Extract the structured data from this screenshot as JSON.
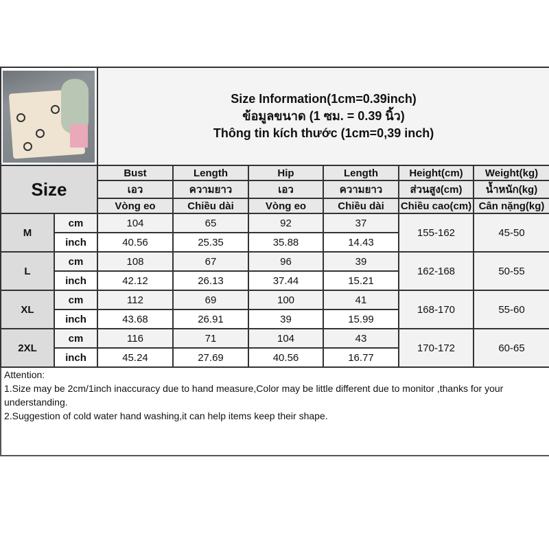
{
  "title_lines": [
    "Size Information(1cm=0.39inch)",
    "ข้อมูลขนาด (1 ซม. = 0.39 นิ้ว)",
    "Thông tin kích thước (1cm=0,39 inch)"
  ],
  "size_label": "Size",
  "headers": [
    {
      "en": "Bust",
      "th": "เอว",
      "vi": "Vòng eo"
    },
    {
      "en": "Length",
      "th": "ความยาว",
      "vi": "Chiều dài"
    },
    {
      "en": "Hip",
      "th": "เอว",
      "vi": "Vòng eo"
    },
    {
      "en": "Length",
      "th": "ความยาว",
      "vi": "Chiều dài"
    },
    {
      "en": "Height(cm)",
      "th": "ส่วนสูง(cm)",
      "vi": "Chiều cao(cm)"
    },
    {
      "en": "Weight(kg)",
      "th": "น้ำหนัก(kg)",
      "vi": "Cân nặng(kg)"
    }
  ],
  "unit_labels": {
    "cm": "cm",
    "inch": "inch"
  },
  "sizes": [
    {
      "size": "M",
      "cm": [
        "104",
        "65",
        "92",
        "37"
      ],
      "inch": [
        "40.56",
        "25.35",
        "35.88",
        "14.43"
      ],
      "height": "155-162",
      "weight": "45-50"
    },
    {
      "size": "L",
      "cm": [
        "108",
        "67",
        "96",
        "39"
      ],
      "inch": [
        "42.12",
        "26.13",
        "37.44",
        "15.21"
      ],
      "height": "162-168",
      "weight": "50-55"
    },
    {
      "size": "XL",
      "cm": [
        "112",
        "69",
        "100",
        "41"
      ],
      "inch": [
        "43.68",
        "26.91",
        "39",
        "15.99"
      ],
      "height": "168-170",
      "weight": "55-60"
    },
    {
      "size": "2XL",
      "cm": [
        "116",
        "71",
        "104",
        "43"
      ],
      "inch": [
        "45.24",
        "27.69",
        "40.56",
        "16.77"
      ],
      "height": "170-172",
      "weight": "60-65"
    }
  ],
  "attention": [
    "Attention:",
    "1.Size may be 2cm/1inch inaccuracy due to hand measure,Color may be little different due to monitor ,thanks for your understanding.",
    "2.Suggestion of cold water hand washing,it can help items keep their shape."
  ]
}
